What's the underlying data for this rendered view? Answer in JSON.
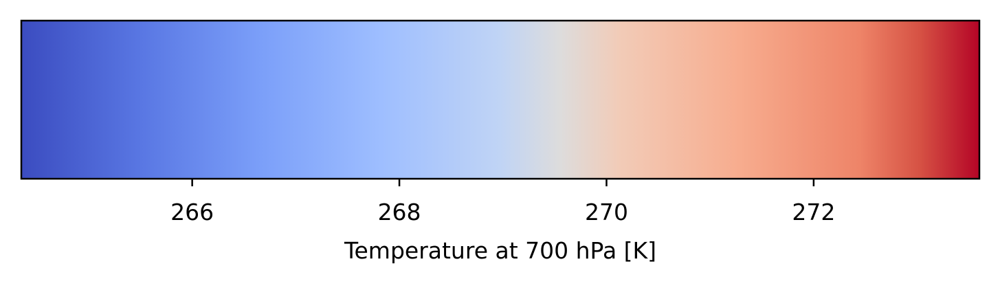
{
  "chart_data": {
    "type": "colorbar",
    "orientation": "horizontal",
    "colormap": "coolwarm",
    "xlabel": "Temperature at 700 hPa [K]",
    "xlim": [
      264.35,
      273.6
    ],
    "ticks": [
      266,
      268,
      270,
      272
    ],
    "tick_labels": [
      "266",
      "268",
      "270",
      "272"
    ],
    "color_stops": [
      {
        "t": 0.0,
        "color": "#3b4cc0"
      },
      {
        "t": 0.125,
        "color": "#5977e3"
      },
      {
        "t": 0.25,
        "color": "#7b9ff9"
      },
      {
        "t": 0.375,
        "color": "#9ebeff"
      },
      {
        "t": 0.5,
        "color": "#c0d4f5"
      },
      {
        "t": 0.5625,
        "color": "#dddcdc"
      },
      {
        "t": 0.625,
        "color": "#f2cbb7"
      },
      {
        "t": 0.75,
        "color": "#f7ac8e"
      },
      {
        "t": 0.875,
        "color": "#ee8468"
      },
      {
        "t": 0.9375,
        "color": "#d65244"
      },
      {
        "t": 1.0,
        "color": "#b40426"
      }
    ],
    "frame_color": "#000000"
  }
}
